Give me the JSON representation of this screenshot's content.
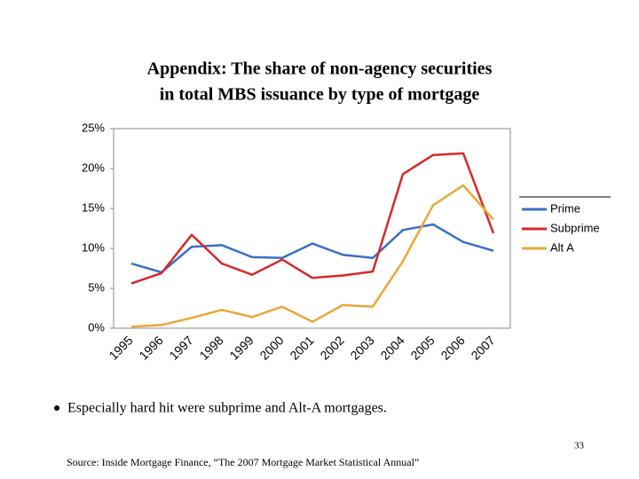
{
  "chart_data": {
    "type": "line",
    "title": [
      "Appendix: The share of non-agency securities",
      "in total MBS issuance by type of mortgage"
    ],
    "categories": [
      "1995",
      "1996",
      "1997",
      "1998",
      "1999",
      "2000",
      "2001",
      "2002",
      "2003",
      "2004",
      "2005",
      "2006",
      "2007"
    ],
    "series": [
      {
        "name": "Prime",
        "color": "#3a6fc4",
        "values": [
          8.1,
          7.0,
          10.2,
          10.4,
          8.9,
          8.8,
          10.6,
          9.2,
          8.8,
          12.3,
          13.0,
          10.8,
          9.7
        ]
      },
      {
        "name": "Subprime",
        "color": "#d42a2a",
        "values": [
          5.6,
          6.9,
          11.7,
          8.1,
          6.7,
          8.6,
          6.3,
          6.6,
          7.1,
          19.3,
          21.7,
          21.9,
          11.9
        ]
      },
      {
        "name": "Alt A",
        "color": "#e8a838",
        "values": [
          0.2,
          0.4,
          1.3,
          2.3,
          1.4,
          2.7,
          0.8,
          2.9,
          2.7,
          8.4,
          15.4,
          17.9,
          13.6
        ]
      }
    ],
    "ylim": [
      0,
      25
    ],
    "yticks": [
      {
        "value": 0,
        "label": "0%"
      },
      {
        "value": 5,
        "label": "5%"
      },
      {
        "value": 10,
        "label": "10%"
      },
      {
        "value": 15,
        "label": "15%"
      },
      {
        "value": 20,
        "label": "20%"
      },
      {
        "value": 25,
        "label": "25%"
      }
    ],
    "legend": "right"
  },
  "notes": {
    "bullet": "Especially hard hit were subprime and Alt-A mortgages.",
    "page": "33",
    "source": "Source: Inside Mortgage Finance, “The 2007 Mortgage Market Statistical Annual”"
  }
}
